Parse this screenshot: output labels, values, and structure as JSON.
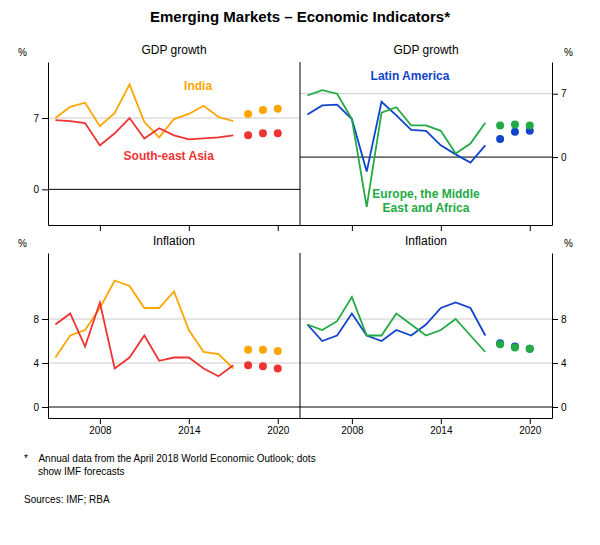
{
  "title": "Emerging Markets – Economic Indicators*",
  "footnote": "*    Annual data from the April 2018 World Economic Outlook; dots\n     show IMF forecasts",
  "sources": "Sources: IMF; RBA",
  "chart_data": [
    {
      "type": "line",
      "title": "GDP growth",
      "ylabel": "%",
      "x": [
        2005,
        2006,
        2007,
        2008,
        2009,
        2010,
        2011,
        2012,
        2013,
        2014,
        2015,
        2016,
        2017,
        2018,
        2019,
        2020
      ],
      "xlim": [
        2004.5,
        2021.5
      ],
      "xticks": [
        2008,
        2014,
        2020
      ],
      "ylim": [
        -3.5,
        12.5
      ],
      "yticks": [
        0,
        7
      ],
      "grid": true,
      "tick_labels": "y",
      "series": [
        {
          "name": "India",
          "type": "line",
          "color": "#FFA500",
          "values": [
            7.0,
            8.1,
            8.5,
            6.2,
            7.5,
            10.3,
            6.6,
            5.1,
            6.9,
            7.4,
            8.2,
            7.1,
            6.7,
            null,
            null,
            null
          ]
        },
        {
          "type": "scatter",
          "marker": "circle",
          "color": "#FFA500",
          "values": [
            null,
            null,
            null,
            null,
            null,
            null,
            null,
            null,
            null,
            null,
            null,
            null,
            null,
            7.4,
            7.8,
            7.9
          ]
        },
        {
          "name": "South-east Asia",
          "type": "line",
          "color": "#EE3333",
          "values": [
            6.8,
            6.7,
            6.5,
            4.3,
            5.5,
            7.0,
            5.0,
            6.0,
            5.3,
            4.9,
            5.0,
            5.1,
            5.3,
            null,
            null,
            null
          ]
        },
        {
          "type": "scatter",
          "marker": "circle",
          "color": "#EE3333",
          "values": [
            null,
            null,
            null,
            null,
            null,
            null,
            null,
            null,
            null,
            null,
            null,
            null,
            null,
            5.3,
            5.5,
            5.5
          ]
        }
      ]
    },
    {
      "type": "line",
      "title": "GDP growth",
      "ylabel": "%",
      "x": [
        2005,
        2006,
        2007,
        2008,
        2009,
        2010,
        2011,
        2012,
        2013,
        2014,
        2015,
        2016,
        2017,
        2018,
        2019,
        2020
      ],
      "xlim": [
        2004.5,
        2021.5
      ],
      "xticks": [
        2008,
        2014,
        2020
      ],
      "ylim": [
        -7.5,
        10.5
      ],
      "yticks": [
        0,
        7
      ],
      "grid": true,
      "tick_labels": "y",
      "series": [
        {
          "name": "Latin America",
          "type": "line",
          "color": "#1144CC",
          "values": [
            4.7,
            5.7,
            5.8,
            4.2,
            -1.6,
            6.1,
            4.6,
            3.0,
            2.9,
            1.3,
            0.3,
            -0.6,
            1.3,
            null,
            null,
            null
          ]
        },
        {
          "type": "scatter",
          "marker": "circle",
          "color": "#1144CC",
          "values": [
            null,
            null,
            null,
            null,
            null,
            null,
            null,
            null,
            null,
            null,
            null,
            null,
            null,
            2.0,
            2.8,
            2.9
          ]
        },
        {
          "name": "Europe, the Middle\nEast and Africa",
          "type": "line",
          "color": "#22AA44",
          "values": [
            6.8,
            7.4,
            7.0,
            4.2,
            -5.5,
            4.9,
            5.5,
            3.5,
            3.5,
            2.9,
            0.4,
            1.5,
            3.8,
            null,
            null,
            null
          ]
        },
        {
          "type": "scatter",
          "marker": "circle",
          "color": "#22AA44",
          "values": [
            null,
            null,
            null,
            null,
            null,
            null,
            null,
            null,
            null,
            null,
            null,
            null,
            null,
            3.5,
            3.6,
            3.5
          ]
        }
      ]
    },
    {
      "type": "line",
      "title": "Inflation",
      "ylabel": "%",
      "x": [
        2005,
        2006,
        2007,
        2008,
        2009,
        2010,
        2011,
        2012,
        2013,
        2014,
        2015,
        2016,
        2017,
        2018,
        2019,
        2020
      ],
      "xlim": [
        2004.5,
        2021.5
      ],
      "xticks": [
        2008,
        2014,
        2020
      ],
      "ylim": [
        -1,
        14
      ],
      "yticks": [
        0,
        4,
        8
      ],
      "grid": true,
      "series": [
        {
          "type": "line",
          "color": "#FFA500",
          "values": [
            4.5,
            6.5,
            7.0,
            9.0,
            11.5,
            11.0,
            9.0,
            9.0,
            10.5,
            7.0,
            5.0,
            4.8,
            3.5,
            null,
            null,
            null
          ]
        },
        {
          "type": "scatter",
          "marker": "circle",
          "color": "#FFA500",
          "values": [
            null,
            null,
            null,
            null,
            null,
            null,
            null,
            null,
            null,
            null,
            null,
            null,
            null,
            5.2,
            5.2,
            5.1
          ]
        },
        {
          "type": "line",
          "color": "#EE3333",
          "values": [
            7.5,
            8.5,
            5.5,
            9.5,
            3.5,
            4.5,
            6.5,
            4.2,
            4.5,
            4.5,
            3.5,
            2.8,
            3.8,
            null,
            null,
            null
          ]
        },
        {
          "type": "scatter",
          "marker": "circle",
          "color": "#EE3333",
          "values": [
            null,
            null,
            null,
            null,
            null,
            null,
            null,
            null,
            null,
            null,
            null,
            null,
            null,
            3.8,
            3.7,
            3.5
          ]
        }
      ]
    },
    {
      "type": "line",
      "title": "Inflation",
      "ylabel": "%",
      "x": [
        2005,
        2006,
        2007,
        2008,
        2009,
        2010,
        2011,
        2012,
        2013,
        2014,
        2015,
        2016,
        2017,
        2018,
        2019,
        2020
      ],
      "xlim": [
        2004.5,
        2021.5
      ],
      "xticks": [
        2008,
        2014,
        2020
      ],
      "ylim": [
        -1,
        14
      ],
      "yticks": [
        0,
        4,
        8
      ],
      "grid": true,
      "series": [
        {
          "type": "line",
          "color": "#1144CC",
          "values": [
            7.5,
            6.0,
            6.5,
            8.5,
            6.5,
            6.0,
            7.0,
            6.5,
            7.5,
            9.0,
            9.5,
            9.0,
            6.5,
            null,
            null,
            null
          ]
        },
        {
          "type": "scatter",
          "marker": "circle",
          "color": "#1144CC",
          "values": [
            null,
            null,
            null,
            null,
            null,
            null,
            null,
            null,
            null,
            null,
            null,
            null,
            null,
            5.8,
            5.5,
            5.3
          ]
        },
        {
          "type": "line",
          "color": "#22AA44",
          "values": [
            7.5,
            7.0,
            7.8,
            10.0,
            6.5,
            6.5,
            8.5,
            7.5,
            6.5,
            7.0,
            8.0,
            6.5,
            5.0,
            null,
            null,
            null
          ]
        },
        {
          "type": "scatter",
          "marker": "circle",
          "color": "#22AA44",
          "values": [
            null,
            null,
            null,
            null,
            null,
            null,
            null,
            null,
            null,
            null,
            null,
            null,
            null,
            5.7,
            5.4,
            5.3
          ]
        }
      ]
    }
  ]
}
